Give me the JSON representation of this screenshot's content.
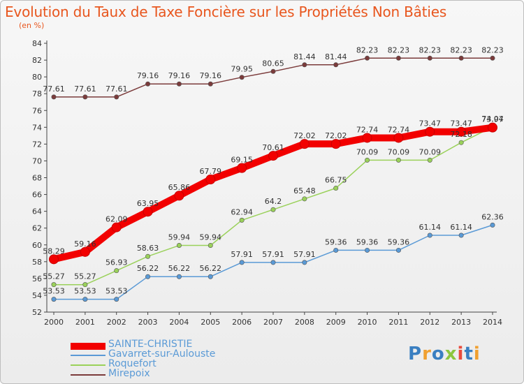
{
  "header": {
    "title": "Evolution du Taux de Taxe Foncière sur les Propriétés Non Bâties",
    "unit": "(en %)"
  },
  "brand": {
    "text": "Proxiti",
    "letters": [
      {
        "char": "P",
        "color": "#3a7fc1"
      },
      {
        "char": "r",
        "color": "#f0a030"
      },
      {
        "char": "o",
        "color": "#3a7fc1"
      },
      {
        "char": "x",
        "color": "#8cc63e"
      },
      {
        "char": "i",
        "color": "#e94b3c"
      },
      {
        "char": "t",
        "color": "#3a7fc1"
      },
      {
        "char": "i",
        "color": "#f0a030"
      }
    ]
  },
  "chart_data": {
    "type": "line",
    "title": "Evolution du Taux de Taxe Foncière sur les Propriétés Non Bâties",
    "ylabel": "(en %)",
    "ylim": [
      52,
      84
    ],
    "yticks": [
      52,
      54,
      56,
      58,
      60,
      62,
      64,
      66,
      68,
      70,
      72,
      74,
      76,
      78,
      80,
      82,
      84
    ],
    "grid": false,
    "legend_position": "bottom-left",
    "x": [
      "2000",
      "2001",
      "2002",
      "2003",
      "2004",
      "2005",
      "2006",
      "2007",
      "2008",
      "2009",
      "2010",
      "2011",
      "2012",
      "2013",
      "2014"
    ],
    "series": [
      {
        "name": "Mirepoix",
        "color": "#7b3b3b",
        "values": [
          77.61,
          77.61,
          77.61,
          79.16,
          79.16,
          79.16,
          79.95,
          80.65,
          81.44,
          81.44,
          82.23,
          82.23,
          82.23,
          82.23,
          82.23
        ],
        "labels": [
          "77.61",
          "77.61",
          "77.61",
          "79.16",
          "79.16",
          "79.16",
          "79.95",
          "80.65",
          "81.44",
          "81.44",
          "82.23",
          "82.23",
          "82.23",
          "82.23",
          "82.23"
        ]
      },
      {
        "name": "Roquefort",
        "color": "#9ad15a",
        "values": [
          55.27,
          55.27,
          56.93,
          58.63,
          59.94,
          59.94,
          62.94,
          64.2,
          65.48,
          66.75,
          70.09,
          70.09,
          70.09,
          72.18,
          74.04
        ],
        "labels": [
          "55.27",
          "55.27",
          "56.93",
          "58.63",
          "59.94",
          "59.94",
          "62.94",
          "64.2",
          "65.48",
          "66.75",
          "70.09",
          "70.09",
          "70.09",
          "72.18",
          "74.04"
        ]
      },
      {
        "name": "Gavarret-sur-Aulouste",
        "color": "#5a9ad6",
        "values": [
          53.53,
          53.53,
          53.53,
          56.22,
          56.22,
          56.22,
          57.91,
          57.91,
          57.91,
          59.36,
          59.36,
          59.36,
          61.14,
          61.14,
          62.36
        ],
        "labels": [
          "53.53",
          "53.53",
          "53.53",
          "56.22",
          "56.22",
          "56.22",
          "57.91",
          "57.91",
          "57.91",
          "59.36",
          "59.36",
          "59.36",
          "61.14",
          "61.14",
          "62.36"
        ]
      },
      {
        "name": "SAINTE-CHRISTIE",
        "color": "#f20000",
        "values": [
          58.29,
          59.16,
          62.09,
          63.95,
          65.86,
          67.79,
          69.15,
          70.61,
          72.02,
          72.02,
          72.74,
          72.74,
          73.47,
          73.47,
          73.97
        ],
        "labels": [
          "58.29",
          "59.16",
          "62.09",
          "63.95",
          "65.86",
          "67.79",
          "69.15",
          "70.61",
          "72.02",
          "72.02",
          "72.74",
          "72.74",
          "73.47",
          "73.47",
          "73.97"
        ]
      }
    ],
    "legend": [
      {
        "name": "SAINTE-CHRISTIE",
        "color": "#f20000"
      },
      {
        "name": "Gavarret-sur-Aulouste",
        "color": "#5a9ad6"
      },
      {
        "name": "Roquefort",
        "color": "#9ad15a"
      },
      {
        "name": "Mirepoix",
        "color": "#7b3b3b"
      }
    ]
  }
}
